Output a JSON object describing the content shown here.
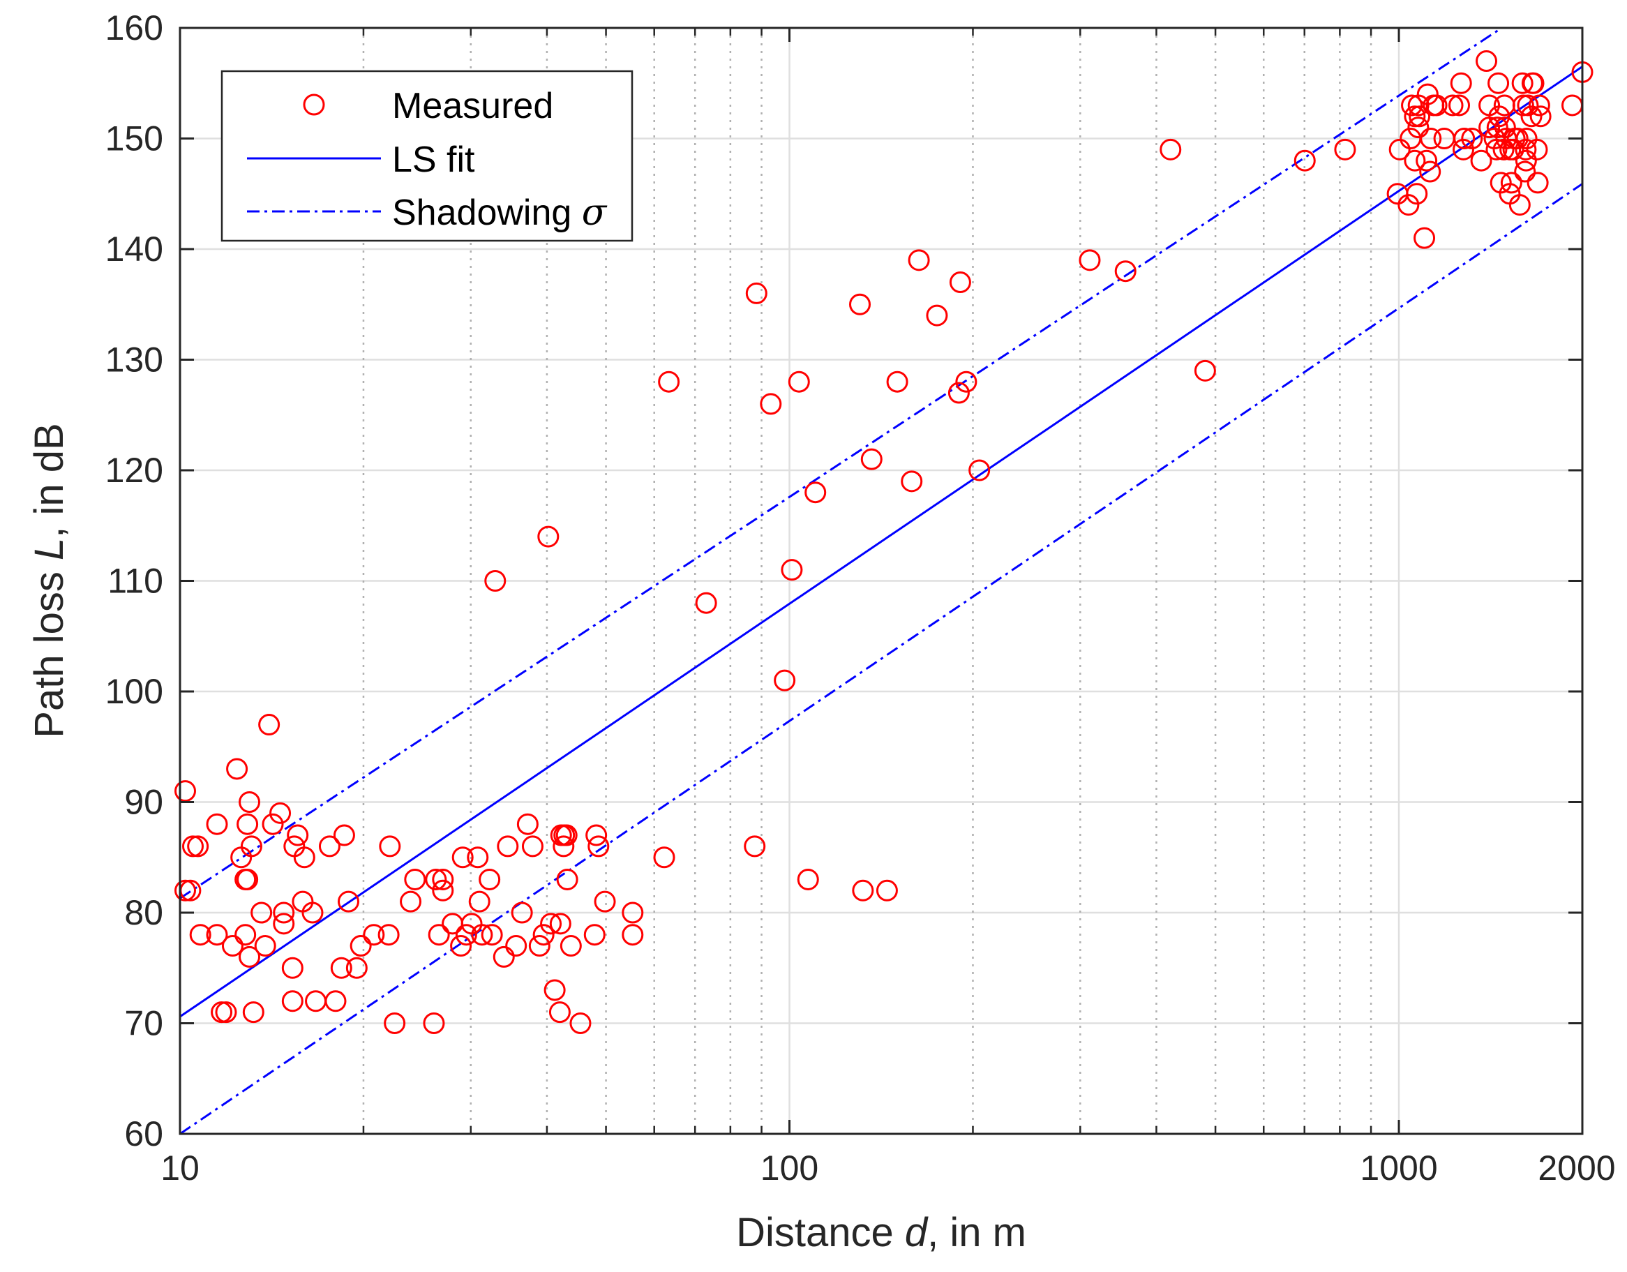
{
  "chart_data": {
    "type": "scatter",
    "title": "",
    "xlabel": {
      "prefix": "Distance ",
      "var": "d",
      "suffix": ", in m"
    },
    "ylabel": {
      "prefix": "Path loss ",
      "var": "L",
      "suffix": ", in dB"
    },
    "xscale": "log",
    "xlim": [
      10,
      2000
    ],
    "ylim": [
      60,
      160
    ],
    "xticks": [
      10,
      100,
      1000,
      2000
    ],
    "xtick_labels": [
      "10",
      "100",
      "1000",
      "2000"
    ],
    "yticks": [
      60,
      70,
      80,
      90,
      100,
      110,
      120,
      130,
      140,
      150,
      160
    ],
    "ytick_labels": [
      "60",
      "70",
      "80",
      "90",
      "100",
      "110",
      "120",
      "130",
      "140",
      "150",
      "160"
    ],
    "grid": true,
    "legend_position": "top-left",
    "colors": {
      "measured": "#ff0000",
      "fit": "#0000ff",
      "axis": "#262626",
      "grid_major": "#dfdfdf",
      "grid_minor": "#b0b0b0"
    },
    "series": [
      {
        "name": "Measured",
        "kind": "markers",
        "points": [
          [
            10.2,
            91
          ],
          [
            10.2,
            82
          ],
          [
            10.4,
            82
          ],
          [
            10.5,
            86
          ],
          [
            10.7,
            86
          ],
          [
            10.8,
            78
          ],
          [
            11.5,
            88
          ],
          [
            11.5,
            78
          ],
          [
            11.7,
            71
          ],
          [
            11.9,
            71
          ],
          [
            12.2,
            77
          ],
          [
            12.4,
            93
          ],
          [
            12.6,
            85
          ],
          [
            12.8,
            78
          ],
          [
            12.8,
            83
          ],
          [
            12.9,
            88
          ],
          [
            12.9,
            83
          ],
          [
            13.0,
            90
          ],
          [
            13.0,
            76
          ],
          [
            13.1,
            86
          ],
          [
            13.2,
            71
          ],
          [
            13.6,
            80
          ],
          [
            13.8,
            77
          ],
          [
            14.0,
            97
          ],
          [
            14.2,
            88
          ],
          [
            14.6,
            89
          ],
          [
            14.8,
            80
          ],
          [
            14.8,
            79
          ],
          [
            15.3,
            75
          ],
          [
            15.3,
            72
          ],
          [
            15.4,
            86
          ],
          [
            15.6,
            87
          ],
          [
            15.9,
            81
          ],
          [
            16.0,
            85
          ],
          [
            16.5,
            80
          ],
          [
            16.7,
            72
          ],
          [
            17.6,
            86
          ],
          [
            18.0,
            72
          ],
          [
            18.4,
            75
          ],
          [
            18.6,
            87
          ],
          [
            18.9,
            81
          ],
          [
            19.5,
            75
          ],
          [
            19.8,
            77
          ],
          [
            20.8,
            78
          ],
          [
            22.0,
            78
          ],
          [
            22.1,
            86
          ],
          [
            22.5,
            70
          ],
          [
            23.9,
            81
          ],
          [
            24.3,
            83
          ],
          [
            26.1,
            70
          ],
          [
            26.3,
            83
          ],
          [
            26.6,
            78
          ],
          [
            27.0,
            83
          ],
          [
            27.0,
            82
          ],
          [
            28.0,
            79
          ],
          [
            28.9,
            77
          ],
          [
            29.1,
            85
          ],
          [
            29.5,
            78
          ],
          [
            30.1,
            79
          ],
          [
            30.8,
            85
          ],
          [
            31.0,
            81
          ],
          [
            31.3,
            78
          ],
          [
            32.2,
            83
          ],
          [
            32.5,
            78
          ],
          [
            32.9,
            110
          ],
          [
            34.0,
            76
          ],
          [
            34.5,
            86
          ],
          [
            35.6,
            77
          ],
          [
            36.4,
            80
          ],
          [
            37.2,
            88
          ],
          [
            37.9,
            86
          ],
          [
            38.9,
            77
          ],
          [
            39.5,
            78
          ],
          [
            40.2,
            114
          ],
          [
            40.6,
            79
          ],
          [
            41.2,
            73
          ],
          [
            42.0,
            71
          ],
          [
            42.1,
            79
          ],
          [
            42.2,
            87
          ],
          [
            42.6,
            86
          ],
          [
            42.7,
            87
          ],
          [
            43.1,
            87
          ],
          [
            43.2,
            83
          ],
          [
            43.8,
            77
          ],
          [
            45.4,
            70
          ],
          [
            47.9,
            78
          ],
          [
            48.2,
            87
          ],
          [
            48.6,
            86
          ],
          [
            49.8,
            81
          ],
          [
            55.3,
            80
          ],
          [
            55.3,
            78
          ],
          [
            62.3,
            85
          ],
          [
            63.4,
            128
          ],
          [
            73.0,
            108
          ],
          [
            87.7,
            86
          ],
          [
            88.3,
            136
          ],
          [
            93.2,
            126
          ],
          [
            98.2,
            101
          ],
          [
            100.9,
            111
          ],
          [
            103.7,
            128
          ],
          [
            107.3,
            83
          ],
          [
            110.3,
            118
          ],
          [
            130.5,
            135
          ],
          [
            132.0,
            82
          ],
          [
            136.4,
            121
          ],
          [
            144.6,
            82
          ],
          [
            150.3,
            128
          ],
          [
            158.7,
            119
          ],
          [
            163.1,
            139
          ],
          [
            174.6,
            134
          ],
          [
            189.7,
            127
          ],
          [
            190.7,
            137
          ],
          [
            195.0,
            128
          ],
          [
            204.9,
            120
          ],
          [
            311,
            139
          ],
          [
            356,
            138
          ],
          [
            422,
            149
          ],
          [
            481,
            129
          ],
          [
            701,
            148
          ],
          [
            816,
            149
          ],
          [
            995,
            145
          ],
          [
            1003,
            149
          ],
          [
            1037,
            144
          ],
          [
            1045,
            150
          ],
          [
            1050,
            153
          ],
          [
            1062,
            152
          ],
          [
            1062,
            148
          ],
          [
            1070,
            145
          ],
          [
            1076,
            151
          ],
          [
            1077,
            153
          ],
          [
            1081,
            152
          ],
          [
            1101,
            141
          ],
          [
            1110,
            148
          ],
          [
            1115,
            154
          ],
          [
            1125,
            147
          ],
          [
            1128,
            150
          ],
          [
            1140,
            153
          ],
          [
            1153,
            153
          ],
          [
            1187,
            150
          ],
          [
            1225,
            153
          ],
          [
            1256,
            153
          ],
          [
            1265,
            155
          ],
          [
            1276,
            149
          ],
          [
            1280,
            150
          ],
          [
            1318,
            150
          ],
          [
            1365,
            148
          ],
          [
            1392,
            157
          ],
          [
            1407,
            151
          ],
          [
            1407,
            153
          ],
          [
            1435,
            150
          ],
          [
            1446,
            149
          ],
          [
            1451,
            151
          ],
          [
            1456,
            155
          ],
          [
            1461,
            152
          ],
          [
            1470,
            146
          ],
          [
            1485,
            149
          ],
          [
            1490,
            153
          ],
          [
            1494,
            151
          ],
          [
            1500,
            150
          ],
          [
            1520,
            145
          ],
          [
            1523,
            149
          ],
          [
            1530,
            146
          ],
          [
            1541,
            149
          ],
          [
            1549,
            150
          ],
          [
            1566,
            150
          ],
          [
            1579,
            144
          ],
          [
            1595,
            155
          ],
          [
            1600,
            153
          ],
          [
            1610,
            147
          ],
          [
            1615,
            149
          ],
          [
            1617,
            148
          ],
          [
            1620,
            150
          ],
          [
            1628,
            153
          ],
          [
            1650,
            152
          ],
          [
            1656,
            155
          ],
          [
            1663,
            155
          ],
          [
            1685,
            149
          ],
          [
            1690,
            146
          ],
          [
            1700,
            153
          ],
          [
            1708,
            152
          ],
          [
            1925,
            153
          ],
          [
            2000,
            156
          ]
        ]
      },
      {
        "name": "LS fit",
        "kind": "line",
        "style": "solid",
        "x": [
          10,
          2000
        ],
        "y": [
          70.6,
          156.5
        ]
      },
      {
        "name": "Shadowing σ",
        "kind": "line",
        "style": "dashdot",
        "x": [
          10,
          1475
        ],
        "y": [
          81.3,
          160
        ]
      },
      {
        "name": "Shadowing σ",
        "kind": "line",
        "style": "dashdot",
        "x": [
          10,
          2000
        ],
        "y": [
          60,
          145.9
        ]
      }
    ],
    "legend": [
      {
        "label": "Measured",
        "marker": "circle"
      },
      {
        "label": "LS fit",
        "marker": "solid"
      },
      {
        "label": "Shadowing",
        "symbol": "σ",
        "marker": "dashdot"
      }
    ]
  }
}
